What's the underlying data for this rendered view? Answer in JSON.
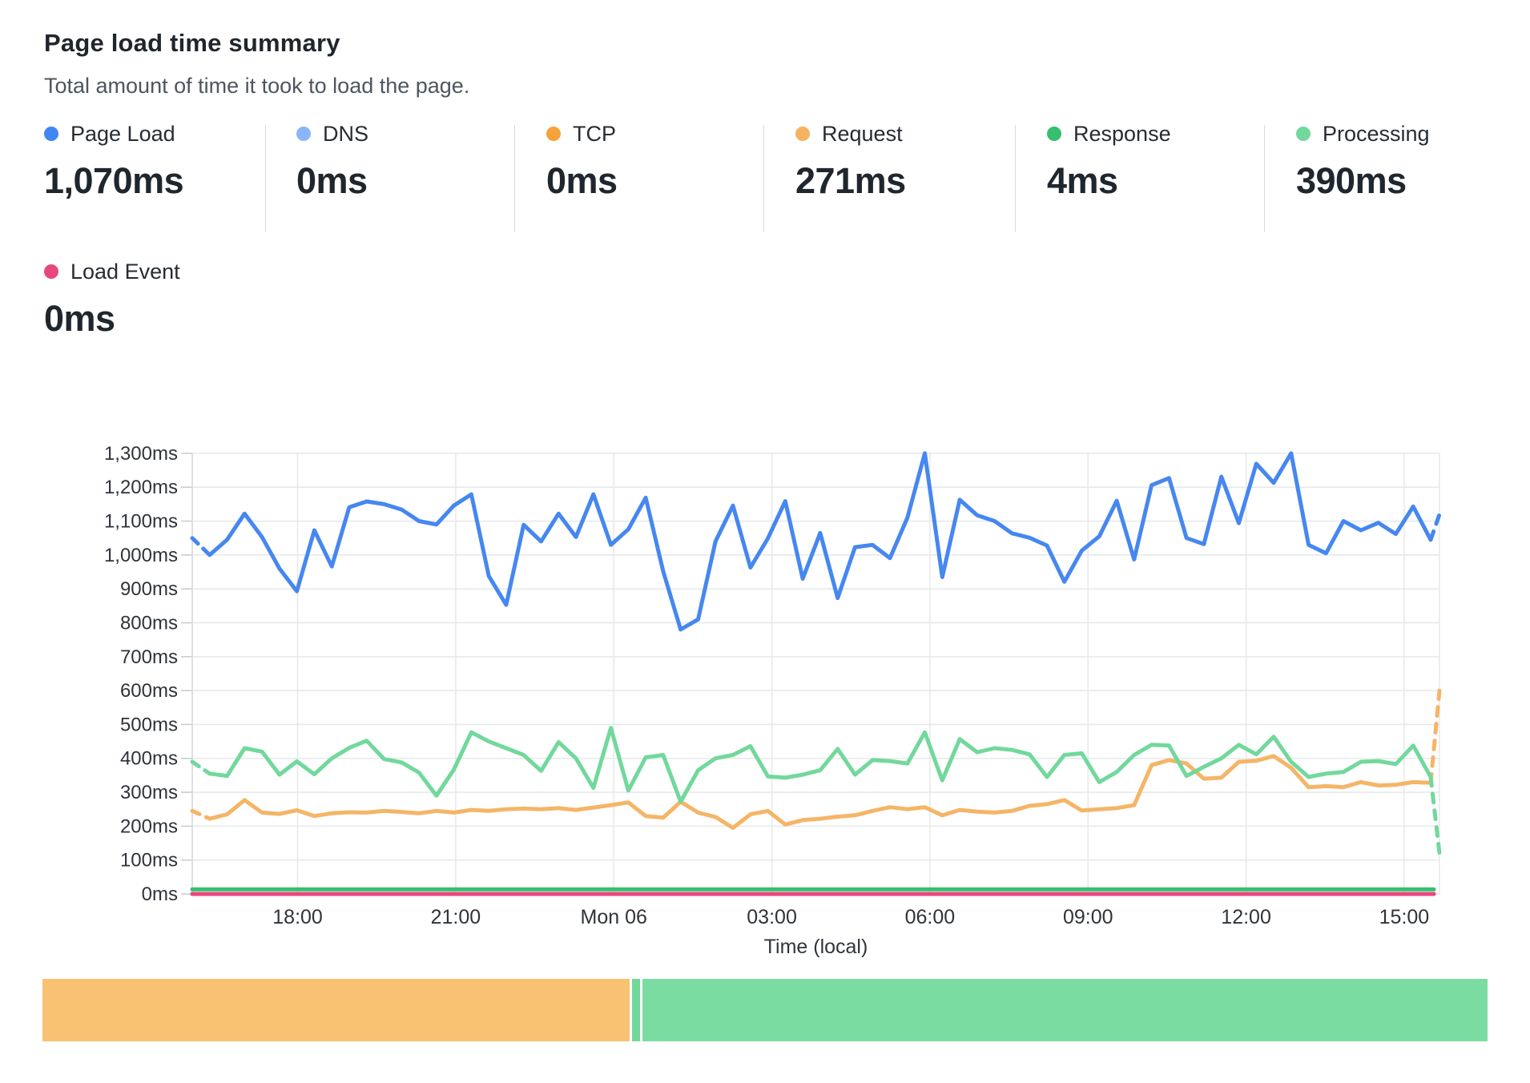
{
  "header": {
    "title": "Page load time summary",
    "subtitle": "Total amount of time it took to load the page."
  },
  "metrics": {
    "items": [
      {
        "label": "Page Load",
        "value": "1,070ms",
        "color": "#4285f4"
      },
      {
        "label": "DNS",
        "value": "0ms",
        "color": "#8ab5f8"
      },
      {
        "label": "TCP",
        "value": "0ms",
        "color": "#f6a23b"
      },
      {
        "label": "Request",
        "value": "271ms",
        "color": "#f6b25e"
      },
      {
        "label": "Response",
        "value": "4ms",
        "color": "#36bf6e"
      },
      {
        "label": "Processing",
        "value": "390ms",
        "color": "#72d89c"
      },
      {
        "label": "Load Event",
        "value": "0ms",
        "color": "#e8477f"
      }
    ]
  },
  "chart_data": {
    "type": "line",
    "title": "Page load time summary",
    "xlabel": "Time (local)",
    "ylabel": "",
    "ylim": [
      0,
      1300
    ],
    "y_tick_step": 100,
    "y_unit": "ms",
    "grid": true,
    "x_ticks": [
      {
        "hour": 18,
        "label": "18:00"
      },
      {
        "hour": 21,
        "label": "21:00"
      },
      {
        "hour": 24,
        "label": "Mon 06"
      },
      {
        "hour": 27,
        "label": "03:00"
      },
      {
        "hour": 30,
        "label": "06:00"
      },
      {
        "hour": 33,
        "label": "09:00"
      },
      {
        "hour": 36,
        "label": "12:00"
      },
      {
        "hour": 39,
        "label": "15:00"
      }
    ],
    "x_start_hour": 16,
    "x_end_hour": 39.67,
    "sample_interval_min": 20,
    "series": [
      {
        "name": "DNS",
        "color": "#8ab5f8",
        "constant": 0,
        "visual_offset": 0
      },
      {
        "name": "TCP",
        "color": "#f6a23b",
        "constant": 0,
        "visual_offset": 0
      },
      {
        "name": "Request",
        "color": "#f5b567",
        "dashed_end": 600,
        "values": [
          245,
          222,
          235,
          277,
          240,
          236,
          247,
          230,
          238,
          241,
          240,
          245,
          242,
          238,
          245,
          240,
          248,
          245,
          250,
          252,
          250,
          253,
          248,
          255,
          262,
          270,
          230,
          225,
          272,
          240,
          227,
          195,
          235,
          245,
          205,
          218,
          222,
          228,
          232,
          245,
          256,
          250,
          256,
          232,
          248,
          243,
          240,
          245,
          260,
          265,
          277,
          246,
          250,
          253,
          262,
          380,
          395,
          385,
          340,
          343,
          390,
          393,
          407,
          372,
          315,
          318,
          315,
          330,
          320,
          322,
          330,
          328
        ]
      },
      {
        "name": "Processing",
        "color": "#72d89c",
        "dashed_end": 120,
        "values": [
          390,
          355,
          348,
          430,
          420,
          352,
          391,
          353,
          400,
          431,
          452,
          398,
          388,
          358,
          290,
          367,
          477,
          450,
          430,
          410,
          363,
          448,
          400,
          313,
          490,
          305,
          403,
          410,
          272,
          365,
          400,
          410,
          436,
          347,
          343,
          352,
          365,
          428,
          352,
          395,
          392,
          385,
          477,
          335,
          457,
          418,
          430,
          425,
          412,
          345,
          410,
          415,
          330,
          360,
          410,
          440,
          438,
          348,
          375,
          400,
          440,
          412,
          464,
          390,
          345,
          355,
          360,
          390,
          392,
          383,
          438,
          345
        ]
      },
      {
        "name": "Response",
        "color": "#36bf6e",
        "constant": 4,
        "visual_offset": -4
      },
      {
        "name": "Load Event",
        "color": "#e8477f",
        "constant": 0,
        "visual_offset": 0
      },
      {
        "name": "Page Load",
        "color": "#4687f0",
        "dashed_end": 1120,
        "values": [
          1050,
          1000,
          1045,
          1122,
          1053,
          960,
          893,
          1073,
          966,
          1141,
          1158,
          1150,
          1134,
          1100,
          1090,
          1146,
          1179,
          938,
          853,
          1089,
          1040,
          1122,
          1053,
          1179,
          1030,
          1076,
          1169,
          952,
          780,
          810,
          1040,
          1146,
          963,
          1049,
          1159,
          930,
          1065,
          873,
          1023,
          1030,
          991,
          1110,
          1300,
          935,
          1163,
          1117,
          1100,
          1064,
          1051,
          1028,
          921,
          1013,
          1055,
          1160,
          987,
          1206,
          1227,
          1050,
          1032,
          1231,
          1094,
          1269,
          1213,
          1300,
          1030,
          1005,
          1100,
          1073,
          1095,
          1062,
          1143,
          1045
        ]
      }
    ]
  },
  "breakdown_bar": {
    "segments": [
      {
        "name": "request",
        "ms": 271,
        "color": "#f8c272"
      },
      {
        "name": "response",
        "ms": 4,
        "color": "#72d89c"
      },
      {
        "name": "processing",
        "ms": 390,
        "color": "#7bdca2"
      }
    ]
  }
}
